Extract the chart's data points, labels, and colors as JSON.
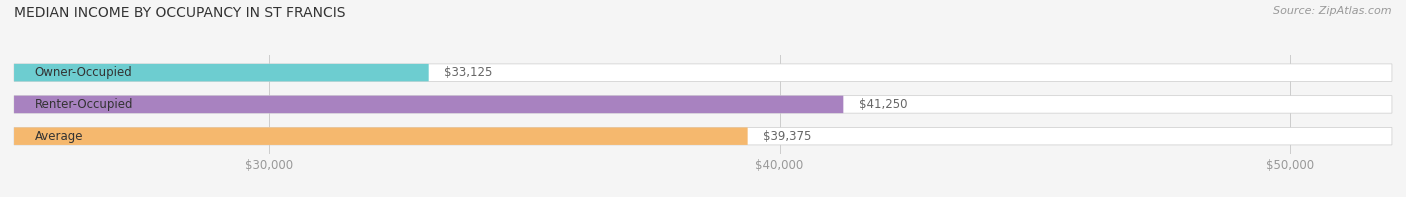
{
  "title": "MEDIAN INCOME BY OCCUPANCY IN ST FRANCIS",
  "source": "Source: ZipAtlas.com",
  "categories": [
    "Owner-Occupied",
    "Renter-Occupied",
    "Average"
  ],
  "values": [
    33125,
    41250,
    39375
  ],
  "bar_colors": [
    "#6dcdd0",
    "#a882c0",
    "#f5b86e"
  ],
  "value_labels": [
    "$33,125",
    "$41,250",
    "$39,375"
  ],
  "xlim": [
    25000,
    52000
  ],
  "xticks": [
    30000,
    40000,
    50000
  ],
  "xtick_labels": [
    "$30,000",
    "$40,000",
    "$50,000"
  ],
  "title_fontsize": 10,
  "label_fontsize": 8.5,
  "tick_fontsize": 8.5,
  "source_fontsize": 8,
  "bar_height": 0.55,
  "bg_color": "#f5f5f5"
}
